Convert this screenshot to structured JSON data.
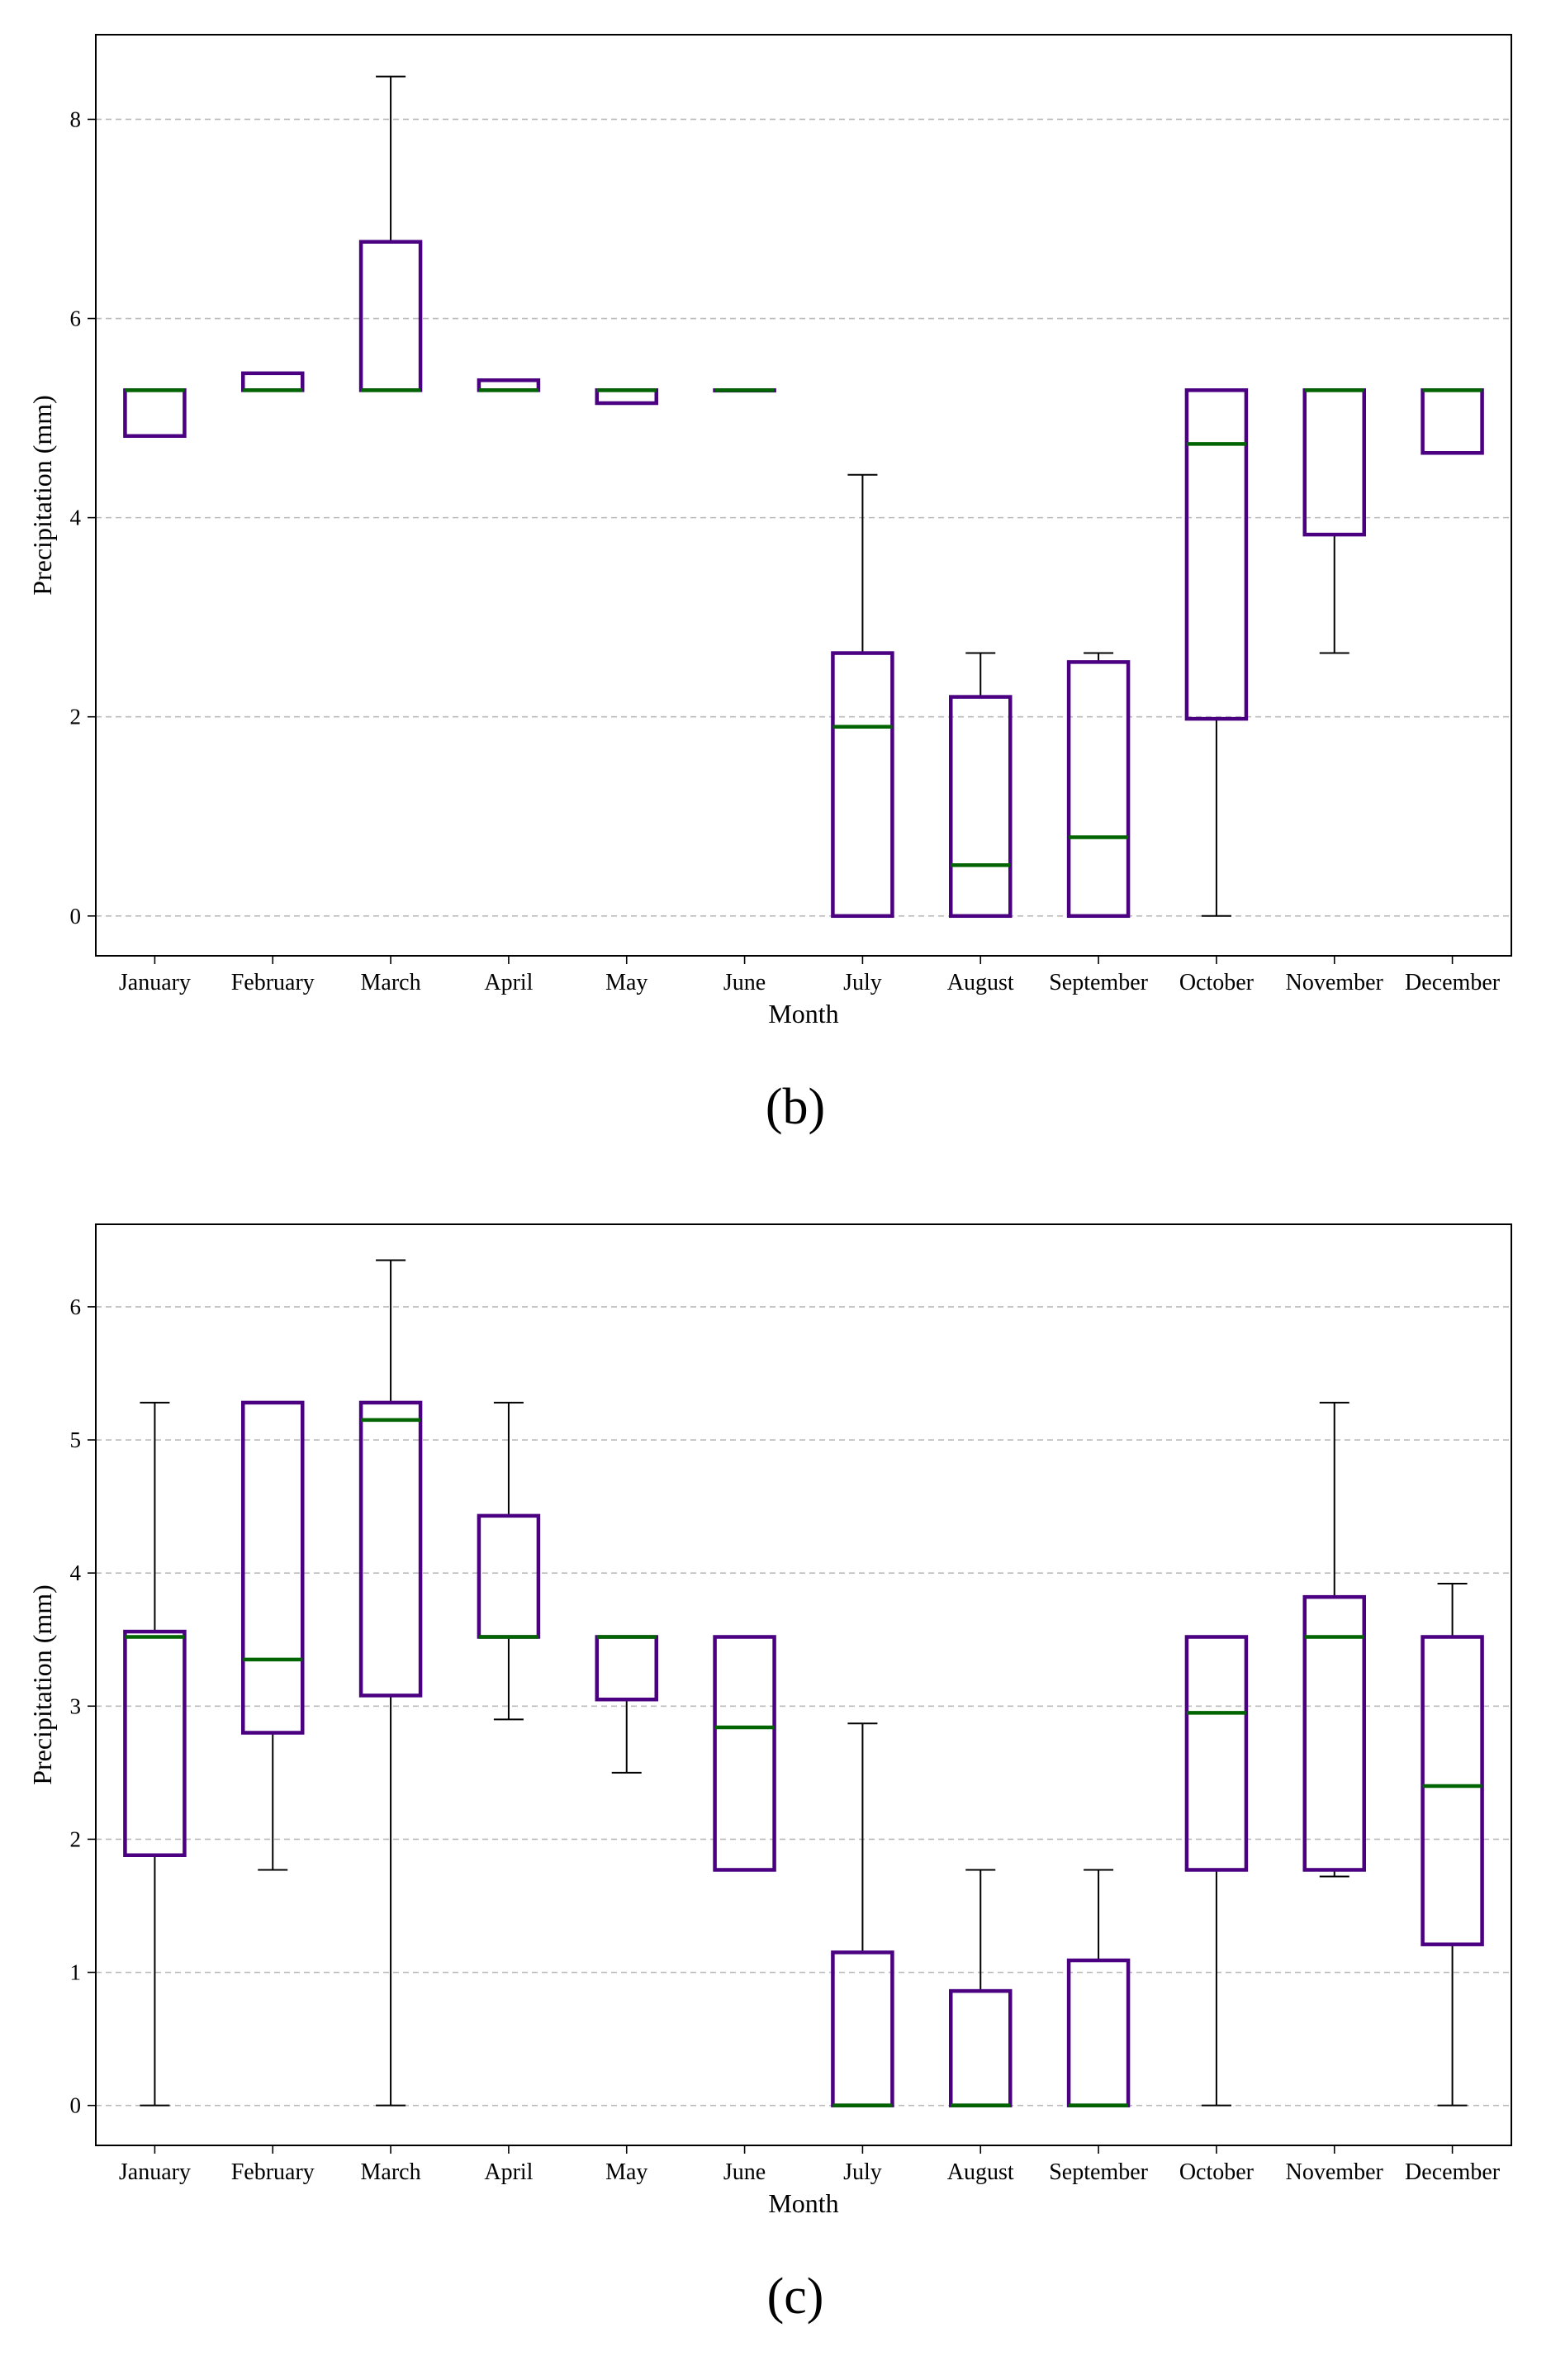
{
  "chart_data": [
    {
      "type": "box",
      "panel_label": "(b)",
      "xlabel": "Month",
      "ylabel": "Precipitation (mm)",
      "ylim": [
        -0.4,
        8.85
      ],
      "yticks": [
        0,
        2,
        4,
        6,
        8
      ],
      "grid": "horizontal-dashed",
      "categories": [
        "January",
        "February",
        "March",
        "April",
        "May",
        "June",
        "July",
        "August",
        "September",
        "October",
        "November",
        "December"
      ],
      "boxes": [
        {
          "whislo": 4.82,
          "q1": 4.82,
          "med": 5.28,
          "q3": 5.28,
          "whishi": 5.28
        },
        {
          "whislo": 5.28,
          "q1": 5.28,
          "med": 5.28,
          "q3": 5.45,
          "whishi": 5.45
        },
        {
          "whislo": 5.28,
          "q1": 5.28,
          "med": 5.28,
          "q3": 6.77,
          "whishi": 8.43
        },
        {
          "whislo": 5.28,
          "q1": 5.28,
          "med": 5.28,
          "q3": 5.38,
          "whishi": 5.38
        },
        {
          "whislo": 5.15,
          "q1": 5.15,
          "med": 5.28,
          "q3": 5.28,
          "whishi": 5.28
        },
        {
          "whislo": 5.28,
          "q1": 5.28,
          "med": 5.28,
          "q3": 5.28,
          "whishi": 5.28
        },
        {
          "whislo": 0.0,
          "q1": 0.0,
          "med": 1.9,
          "q3": 2.64,
          "whishi": 4.43
        },
        {
          "whislo": 0.0,
          "q1": 0.0,
          "med": 0.51,
          "q3": 2.2,
          "whishi": 2.64
        },
        {
          "whislo": 0.0,
          "q1": 0.0,
          "med": 0.79,
          "q3": 2.55,
          "whishi": 2.64
        },
        {
          "whislo": 0.0,
          "q1": 1.98,
          "med": 4.74,
          "q3": 5.28,
          "whishi": 5.28
        },
        {
          "whislo": 2.64,
          "q1": 3.83,
          "med": 5.28,
          "q3": 5.28,
          "whishi": 5.28
        },
        {
          "whislo": 4.65,
          "q1": 4.65,
          "med": 5.28,
          "q3": 5.28,
          "whishi": 5.28
        }
      ],
      "box_color": "#4b0082",
      "median_color": "#006400",
      "whisker_color": "#000000",
      "grid_color": "#bbbbbb"
    },
    {
      "type": "box",
      "panel_label": "(c)",
      "xlabel": "Month",
      "ylabel": "Precipitation (mm)",
      "ylim": [
        -0.3,
        6.62
      ],
      "yticks": [
        0,
        1,
        2,
        3,
        4,
        5,
        6
      ],
      "grid": "horizontal-dashed",
      "categories": [
        "January",
        "February",
        "March",
        "April",
        "May",
        "June",
        "July",
        "August",
        "September",
        "October",
        "November",
        "December"
      ],
      "boxes": [
        {
          "whislo": 0.0,
          "q1": 1.88,
          "med": 3.52,
          "q3": 3.56,
          "whishi": 5.28
        },
        {
          "whislo": 1.77,
          "q1": 2.8,
          "med": 3.35,
          "q3": 5.28,
          "whishi": 5.28
        },
        {
          "whislo": 0.0,
          "q1": 3.08,
          "med": 5.15,
          "q3": 5.28,
          "whishi": 6.35
        },
        {
          "whislo": 2.9,
          "q1": 3.52,
          "med": 3.52,
          "q3": 4.43,
          "whishi": 5.28
        },
        {
          "whislo": 2.5,
          "q1": 3.05,
          "med": 3.52,
          "q3": 3.52,
          "whishi": 3.52
        },
        {
          "whislo": 1.77,
          "q1": 1.77,
          "med": 2.84,
          "q3": 3.52,
          "whishi": 3.52
        },
        {
          "whislo": 0.0,
          "q1": 0.0,
          "med": 0.0,
          "q3": 1.15,
          "whishi": 2.87
        },
        {
          "whislo": 0.0,
          "q1": 0.0,
          "med": 0.0,
          "q3": 0.86,
          "whishi": 1.77
        },
        {
          "whislo": 0.0,
          "q1": 0.0,
          "med": 0.0,
          "q3": 1.09,
          "whishi": 1.77
        },
        {
          "whislo": 0.0,
          "q1": 1.77,
          "med": 2.95,
          "q3": 3.52,
          "whishi": 3.52
        },
        {
          "whislo": 1.72,
          "q1": 1.77,
          "med": 3.52,
          "q3": 3.82,
          "whishi": 5.28
        },
        {
          "whislo": 0.0,
          "q1": 1.21,
          "med": 2.4,
          "q3": 3.52,
          "whishi": 3.92
        }
      ],
      "box_color": "#4b0082",
      "median_color": "#006400",
      "whisker_color": "#000000",
      "grid_color": "#bbbbbb"
    }
  ]
}
